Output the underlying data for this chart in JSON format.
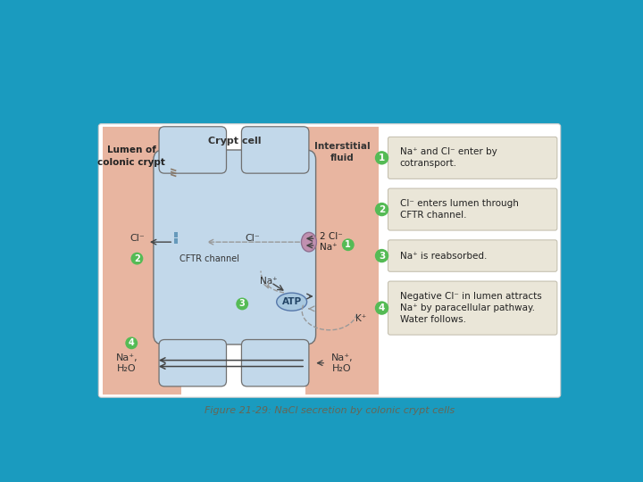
{
  "bg_color": "#1a9bbf",
  "panel_bg": "#ffffff",
  "caption": "Figure 21-29: NaCl secretion by colonic crypt cells",
  "caption_color": "#666655",
  "lumen_color": "#e8b5a0",
  "cell_color": "#c2d8ea",
  "interstitial_color": "#e8b5a0",
  "label_lumen": "Lumen of\ncolonic crypt",
  "label_crypt": "Crypt cell",
  "label_interstitial": "Interstitial\nfluid",
  "step_box_color": "#eae6d8",
  "step_circle_color": "#55bb55",
  "steps": [
    {
      "num": "1",
      "lines": [
        "Na⁺ and Cl⁻ enter by",
        "cotransport."
      ]
    },
    {
      "num": "2",
      "lines": [
        "Cl⁻ enters lumen through",
        "CFTR channel."
      ]
    },
    {
      "num": "3",
      "lines": [
        "Na⁺ is reabsorbed."
      ]
    },
    {
      "num": "4",
      "lines": [
        "Negative Cl⁻ in lumen attracts",
        "Na⁺ by paracellular pathway.",
        "Water follows."
      ]
    }
  ],
  "atp_color": "#a8c8e0",
  "transporter_color": "#c090b0",
  "arrow_color": "#444444",
  "dashed_color": "#999999",
  "tight_junction_color": "#8a7a6a",
  "cftr_color": "#6699bb"
}
